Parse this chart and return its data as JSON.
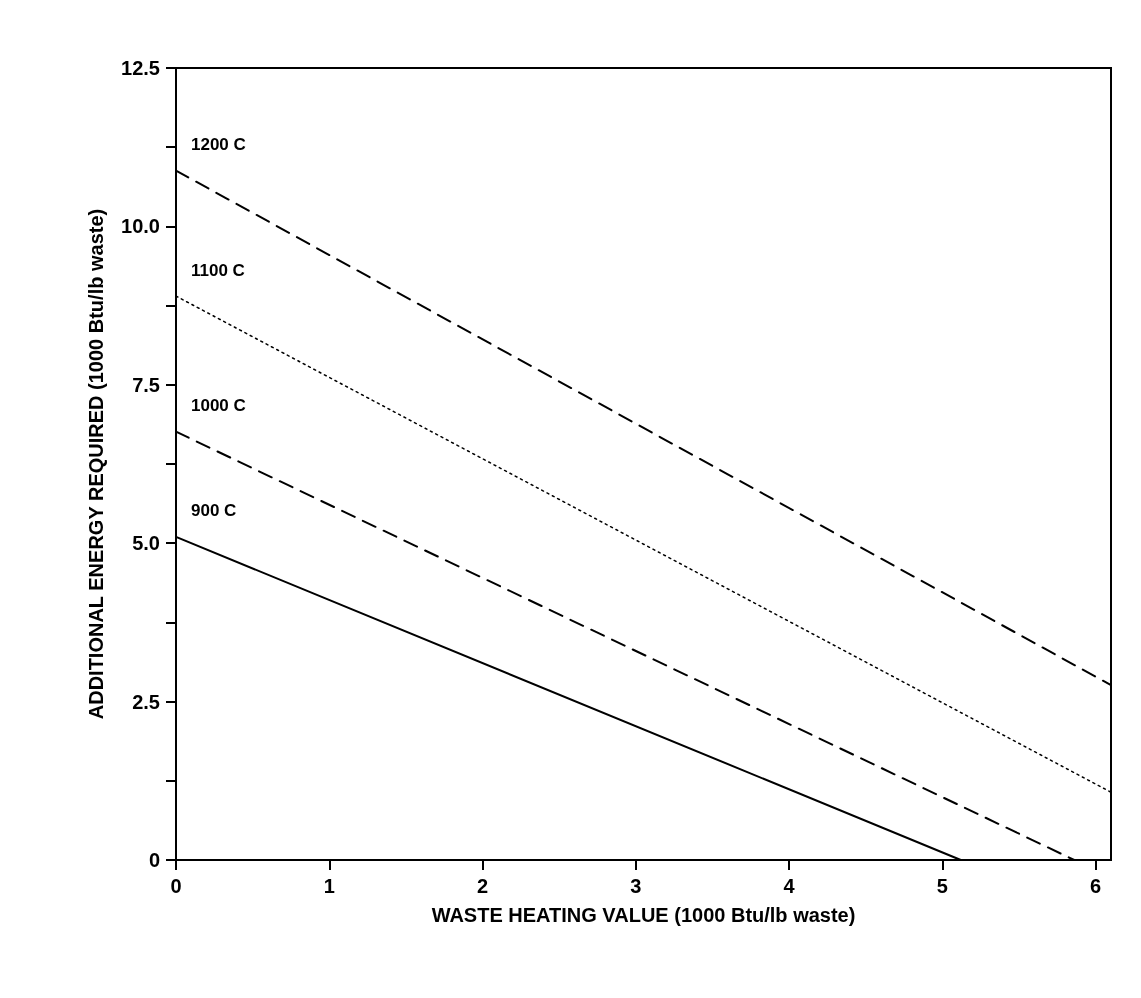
{
  "chart_data": {
    "type": "line",
    "xlabel": "WASTE HEATING VALUE (1000 Btu/lb waste)",
    "ylabel": "ADDITIONAL ENERGY REQUIRED (1000 Btu/lb waste)",
    "xlim": [
      0,
      6.1
    ],
    "xticks": [
      0,
      1,
      2,
      3,
      4,
      5,
      6
    ],
    "ylim": [
      0,
      12.5
    ],
    "yticks": [
      0,
      {
        "value": 1.25,
        "label": null
      },
      2.5,
      {
        "value": 3.75,
        "label": null
      },
      "5.0",
      {
        "value": 6.25,
        "label": null
      },
      7.5,
      {
        "value": 8.75,
        "label": null
      },
      "10.0",
      {
        "value": 11.25,
        "label": null
      },
      12.5
    ],
    "grid": false,
    "legend": false,
    "marker": "none",
    "series": [
      {
        "name": "1200 C",
        "color": "#000000",
        "line_style": "dashed",
        "x": [
          0,
          6.1
        ],
        "values": [
          10.88,
          2.76
        ]
      },
      {
        "name": "1100 C",
        "color": "#000000",
        "line_style": "dotted",
        "x": [
          0,
          6.1
        ],
        "values": [
          8.9,
          1.07
        ]
      },
      {
        "name": "1000 C",
        "color": "#000000",
        "line_style": "dashed",
        "x": [
          0,
          5.86
        ],
        "values": [
          6.76,
          0
        ]
      },
      {
        "name": "900 C",
        "color": "#000000",
        "line_style": "solid",
        "x": [
          0,
          5.12
        ],
        "values": [
          5.1,
          0
        ]
      }
    ]
  }
}
